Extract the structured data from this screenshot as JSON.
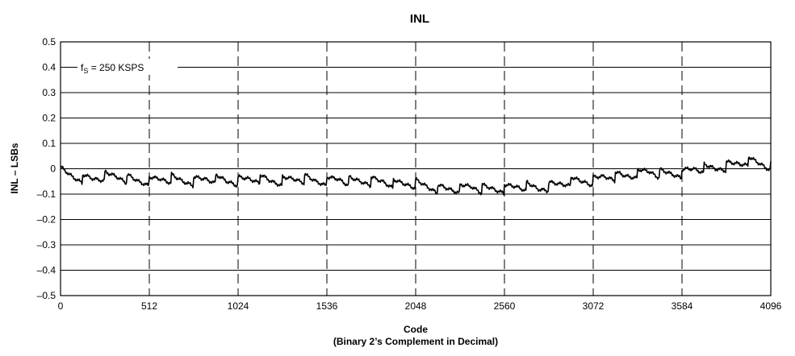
{
  "chart_data": {
    "type": "line",
    "title": "INL",
    "xlabel": "Code",
    "xlabel_sub": "(Binary 2’s Complement in Decimal)",
    "ylabel": "INL – LSBs",
    "annotation": {
      "symbol": "f",
      "subscript": "S",
      "text": " = 250 KSPS"
    },
    "xlim": [
      0,
      4096
    ],
    "ylim": [
      -0.5,
      0.5
    ],
    "x_ticks": [
      0,
      512,
      1024,
      1536,
      2048,
      2560,
      3072,
      3584,
      4096
    ],
    "x_tick_labels": [
      "0",
      "512",
      "1024",
      "1536",
      "2048",
      "2560",
      "3072",
      "3584",
      "4096"
    ],
    "y_ticks": [
      0.5,
      0.4,
      0.3,
      0.2,
      0.1,
      0,
      -0.1,
      -0.2,
      -0.3,
      -0.4,
      -0.5
    ],
    "y_tick_labels": [
      "0.5",
      "0.4",
      "0.3",
      "0.2",
      "0.1",
      "0",
      "–0.1",
      "–0.2",
      "–0.3",
      "–0.4",
      "–0.5"
    ],
    "grid": {
      "horizontal": "solid",
      "vertical": "dashed"
    },
    "legend": "none",
    "series": [
      {
        "x": [
          0,
          64,
          128,
          192,
          256,
          320,
          384,
          448,
          512,
          576,
          640,
          704,
          768,
          832,
          896,
          960,
          1024,
          1088,
          1152,
          1216,
          1280,
          1344,
          1408,
          1472,
          1536,
          1600,
          1664,
          1728,
          1792,
          1856,
          1920,
          1984,
          2048,
          2112,
          2176,
          2240,
          2304,
          2368,
          2432,
          2496,
          2560,
          2624,
          2688,
          2752,
          2816,
          2880,
          2944,
          3008,
          3072,
          3136,
          3200,
          3264,
          3328,
          3392,
          3456,
          3520,
          3584,
          3648,
          3712,
          3776,
          3840,
          3904,
          3968,
          4032,
          4096
        ],
        "y": [
          -0.01,
          -0.03,
          -0.04,
          -0.04,
          -0.03,
          -0.03,
          -0.04,
          -0.05,
          -0.05,
          -0.04,
          -0.04,
          -0.05,
          -0.05,
          -0.04,
          -0.04,
          -0.05,
          -0.05,
          -0.04,
          -0.04,
          -0.05,
          -0.05,
          -0.04,
          -0.04,
          -0.05,
          -0.05,
          -0.04,
          -0.05,
          -0.05,
          -0.05,
          -0.05,
          -0.06,
          -0.06,
          -0.06,
          -0.07,
          -0.08,
          -0.08,
          -0.08,
          -0.07,
          -0.08,
          -0.08,
          -0.08,
          -0.07,
          -0.07,
          -0.08,
          -0.07,
          -0.06,
          -0.05,
          -0.05,
          -0.05,
          -0.03,
          -0.03,
          -0.03,
          -0.02,
          -0.01,
          -0.02,
          -0.02,
          -0.02,
          0.0,
          0.0,
          0.0,
          0.01,
          0.02,
          0.03,
          0.02,
          0.01
        ]
      }
    ]
  }
}
